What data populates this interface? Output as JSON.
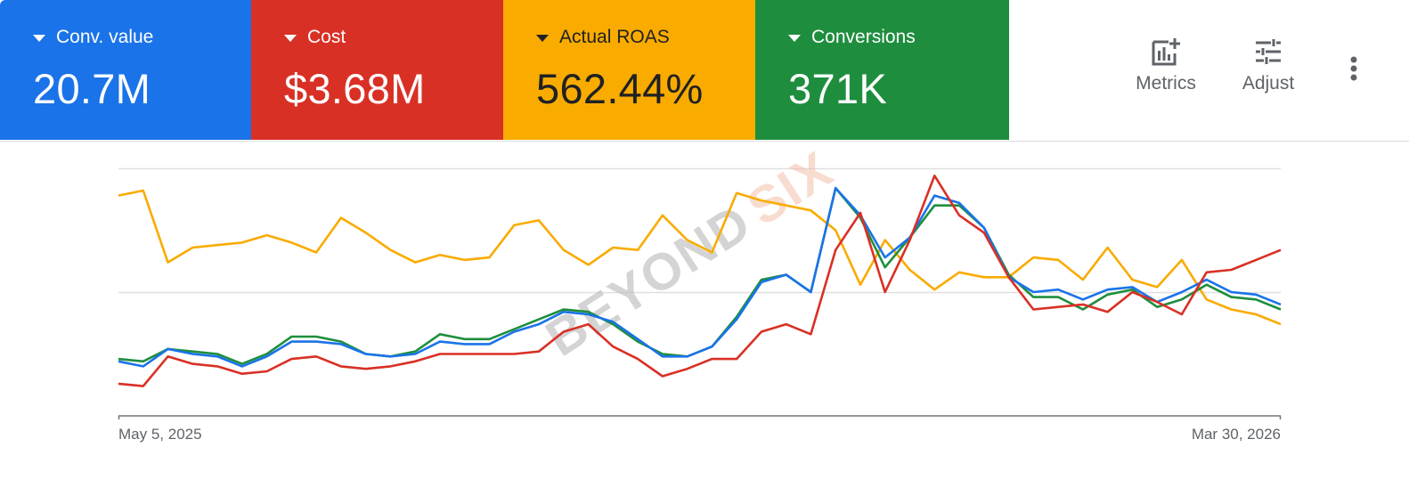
{
  "scorecards": [
    {
      "label": "Conv. value",
      "value": "20.7M",
      "color": "#1a73e8"
    },
    {
      "label": "Cost",
      "value": "$3.68M",
      "color": "#d93025"
    },
    {
      "label": "Actual ROAS",
      "value": "562.44%",
      "color": "#f9ab00"
    },
    {
      "label": "Conversions",
      "value": "371K",
      "color": "#1e8e3e"
    }
  ],
  "toolbar": {
    "metrics_label": "Metrics",
    "adjust_label": "Adjust",
    "more_icon": "more-vert-icon"
  },
  "watermark": {
    "part1": "BEYOND",
    "part2": "SIX"
  },
  "chart_data": {
    "type": "line",
    "title": "",
    "xlabel": "",
    "ylabel": "",
    "x_start_label": "May 5, 2025",
    "x_end_label": "Mar 30, 2026",
    "x_points": 48,
    "grid": true,
    "gridlines_normalized": [
      100,
      50
    ],
    "note": "Values normalized to chart height (0 = x-axis baseline, 100 = top gridline); each series on its own independent axis",
    "series": [
      {
        "name": "Conv. value",
        "color": "#1a73e8",
        "values": [
          22,
          20,
          27,
          25,
          24,
          20,
          24,
          30,
          30,
          29,
          25,
          24,
          25,
          30,
          29,
          29,
          34,
          37,
          42,
          41,
          38,
          31,
          24,
          24,
          28,
          39,
          54,
          57,
          50,
          92,
          81,
          64,
          72,
          89,
          86,
          76,
          56,
          50,
          51,
          47,
          51,
          52,
          46,
          50,
          55,
          50,
          49,
          45
        ]
      },
      {
        "name": "Cost",
        "color": "#d93025",
        "values": [
          13,
          12,
          24,
          21,
          20,
          17,
          18,
          23,
          24,
          20,
          19,
          20,
          22,
          25,
          25,
          25,
          25,
          26,
          34,
          37,
          28,
          23,
          16,
          19,
          23,
          23,
          34,
          37,
          33,
          67,
          82,
          50,
          71,
          97,
          81,
          74,
          56,
          43,
          44,
          45,
          42,
          50,
          46,
          41,
          58,
          59,
          63,
          67
        ]
      },
      {
        "name": "Actual ROAS",
        "color": "#f9ab00",
        "values": [
          89,
          91,
          62,
          68,
          69,
          70,
          73,
          70,
          66,
          80,
          74,
          67,
          62,
          65,
          63,
          64,
          77,
          79,
          67,
          61,
          68,
          67,
          81,
          71,
          66,
          90,
          87,
          85,
          83,
          75,
          53,
          71,
          59,
          51,
          58,
          56,
          56,
          64,
          63,
          55,
          68,
          55,
          52,
          63,
          47,
          43,
          41,
          37
        ]
      },
      {
        "name": "Conversions",
        "color": "#1e8e3e",
        "values": [
          23,
          22,
          27,
          26,
          25,
          21,
          25,
          32,
          32,
          30,
          25,
          24,
          26,
          33,
          31,
          31,
          35,
          39,
          43,
          42,
          37,
          30,
          25,
          24,
          28,
          40,
          55,
          57,
          50,
          92,
          80,
          60,
          72,
          85,
          85,
          76,
          57,
          48,
          48,
          43,
          49,
          51,
          44,
          47,
          53,
          48,
          47,
          43
        ]
      }
    ]
  }
}
